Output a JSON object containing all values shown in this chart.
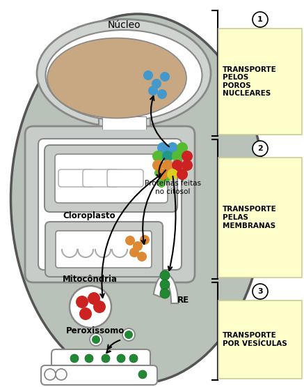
{
  "cell_color": "#b8c2b8",
  "cell_edge": "#555555",
  "nuclear_env_color": "#d0d4d0",
  "nuclear_inner_color": "#c8a882",
  "organelle_gray": "#c8ccc8",
  "white_fill": "#ffffff",
  "box_yellow": "#ffffcc",
  "box_border": "#cccc99",
  "label1": "TRANSPORTE\nPELOS\nPOROS\nNUCLEARES",
  "label2": "TRANSPORTE\nPELAS\nMEMBRANAS",
  "label3": "TRANSPORTE\nPOR VESÍCULAS",
  "n_label": "Núcleo",
  "c_label": "Cloroplasto",
  "m_label": "Mitocôndria",
  "p_label": "Peroxissomo",
  "re_label": "RE",
  "prot_label": "Proteínas feitas\nno citosol",
  "blue": "#4499cc",
  "green": "#55bb33",
  "dark_green": "#228833",
  "orange": "#dd8833",
  "red": "#cc2222",
  "teal": "#229988",
  "yellow_dot": "#ddcc22"
}
